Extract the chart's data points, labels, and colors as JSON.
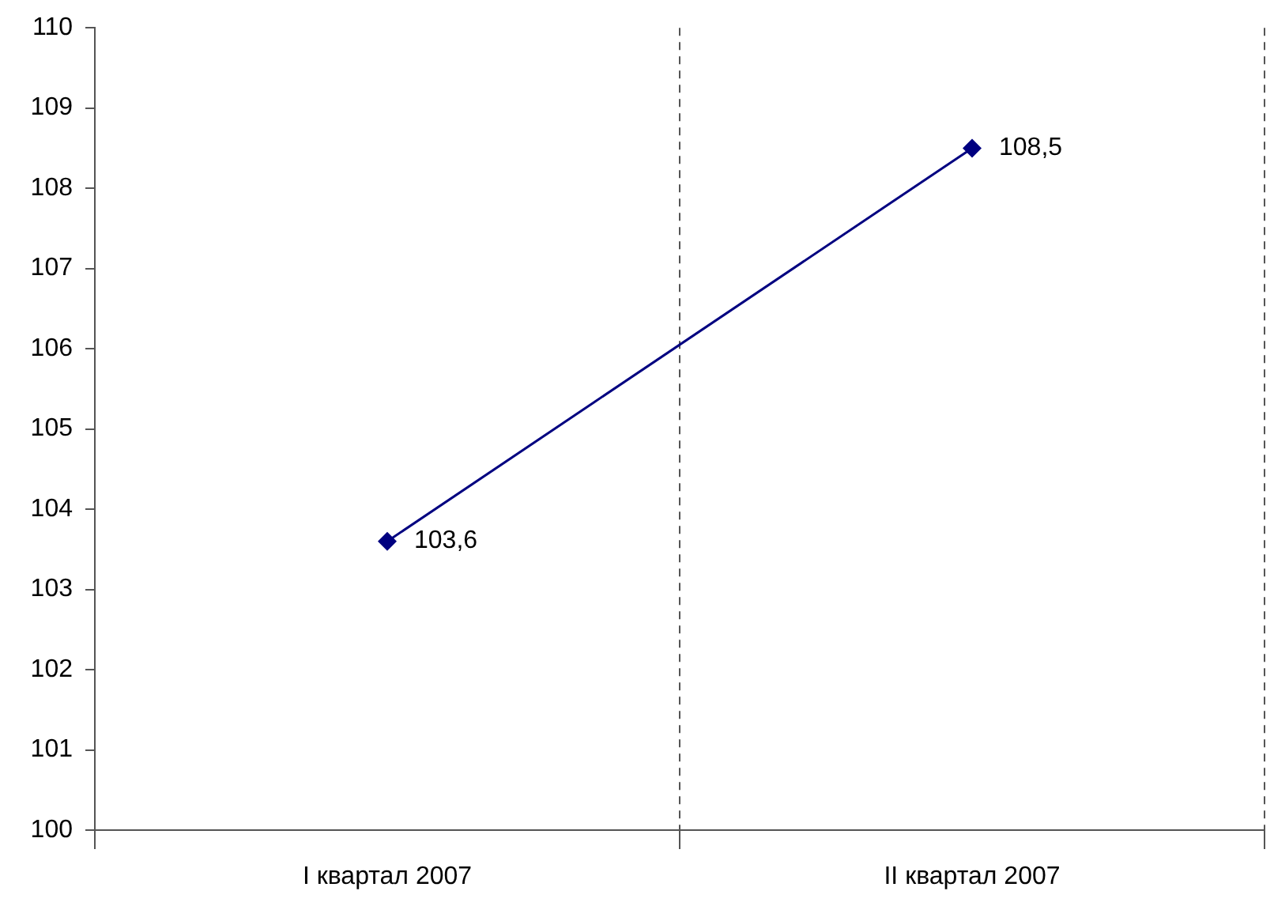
{
  "chart_data": {
    "type": "line",
    "categories": [
      "I квартал 2007",
      "II квартал 2007"
    ],
    "series": [
      {
        "color": "#000080",
        "values": [
          103.6,
          108.5
        ],
        "value_labels": [
          "103,6",
          "108,5"
        ]
      }
    ],
    "ylim": [
      100,
      110
    ],
    "yticks": [
      100,
      101,
      102,
      103,
      104,
      105,
      106,
      107,
      108,
      109,
      110
    ],
    "grid": "x",
    "marker": "diamond",
    "line_style": "solid",
    "legend": false
  }
}
